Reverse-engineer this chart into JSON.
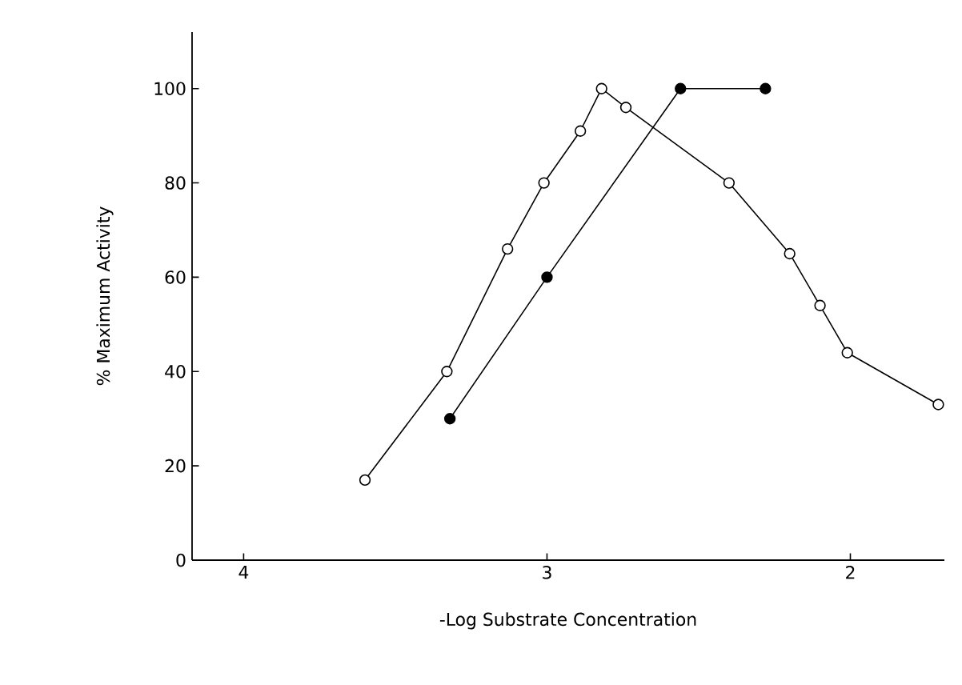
{
  "chart_data": {
    "type": "line",
    "xlabel": "-Log Substrate Concentration",
    "ylabel": "% Maximum Activity",
    "xlim": [
      4.17,
      1.69
    ],
    "ylim": [
      0,
      112
    ],
    "xticks": [
      4,
      3,
      2
    ],
    "yticks": [
      0,
      20,
      40,
      60,
      80,
      100
    ],
    "grid": false,
    "marker": "circle",
    "line_style": "solid",
    "series": [
      {
        "color": "#000000",
        "x": [
          3.6,
          3.33,
          3.13,
          3.01,
          2.89,
          2.82,
          2.74,
          2.4,
          2.2,
          2.1,
          2.01,
          1.71
        ],
        "values": [
          17,
          40,
          66,
          80,
          91,
          100,
          96,
          80,
          65,
          54,
          44,
          33
        ]
      },
      {
        "color": "#000000",
        "x": [
          3.32,
          3.0,
          2.56,
          2.28
        ],
        "values": [
          30,
          60,
          100,
          100
        ]
      }
    ]
  }
}
